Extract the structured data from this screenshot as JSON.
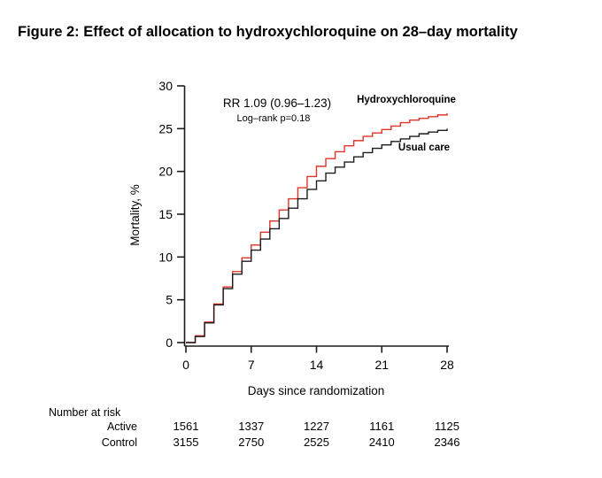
{
  "title": "Figure 2: Effect of allocation to hydroxychloroquine on 28–day mortality",
  "colors": {
    "active": "#e0352a",
    "control": "#1c1c1c",
    "axis": "#1c1c1c"
  },
  "chart_data": {
    "type": "line",
    "subtype": "step",
    "title": "",
    "xlabel": "Days since randomization",
    "ylabel": "Mortality, %",
    "xlim": [
      0,
      28
    ],
    "ylim": [
      0,
      30
    ],
    "xticks": [
      0,
      7,
      14,
      21,
      28
    ],
    "yticks": [
      0,
      5,
      10,
      15,
      20,
      25,
      30
    ],
    "grid": false,
    "x": [
      0,
      1,
      2,
      3,
      4,
      5,
      6,
      7,
      8,
      9,
      10,
      11,
      12,
      13,
      14,
      15,
      16,
      17,
      18,
      19,
      20,
      21,
      22,
      23,
      24,
      25,
      26,
      27,
      28
    ],
    "series": [
      {
        "name": "Hydroxychloroquine",
        "color": "#e0352a",
        "values": [
          0,
          0.8,
          2.4,
          4.5,
          6.5,
          8.3,
          9.9,
          11.4,
          12.9,
          14.2,
          15.5,
          16.8,
          18.1,
          19.4,
          20.6,
          21.5,
          22.3,
          23.0,
          23.6,
          24.1,
          24.5,
          24.9,
          25.3,
          25.7,
          26.0,
          26.2,
          26.4,
          26.6,
          26.8
        ]
      },
      {
        "name": "Usual care",
        "color": "#1c1c1c",
        "values": [
          0,
          0.7,
          2.3,
          4.4,
          6.3,
          8.0,
          9.5,
          10.8,
          12.1,
          13.3,
          14.5,
          15.7,
          16.8,
          17.9,
          18.9,
          19.8,
          20.5,
          21.1,
          21.7,
          22.2,
          22.7,
          23.1,
          23.5,
          23.8,
          24.1,
          24.4,
          24.6,
          24.8,
          25.0
        ]
      }
    ],
    "annotations": {
      "rr": "RR 1.09 (0.96–1.23)",
      "logrank": "Log–rank p=0.18"
    },
    "legend_position": "curve-end-labels"
  },
  "risk_table": {
    "heading": "Number at risk",
    "rows": [
      {
        "label": "Active",
        "color": "#e0352a",
        "values": [
          "1561",
          "1337",
          "1227",
          "1161",
          "1125"
        ]
      },
      {
        "label": "Control",
        "color": "#000000",
        "values": [
          "3155",
          "2750",
          "2525",
          "2410",
          "2346"
        ]
      }
    ]
  }
}
